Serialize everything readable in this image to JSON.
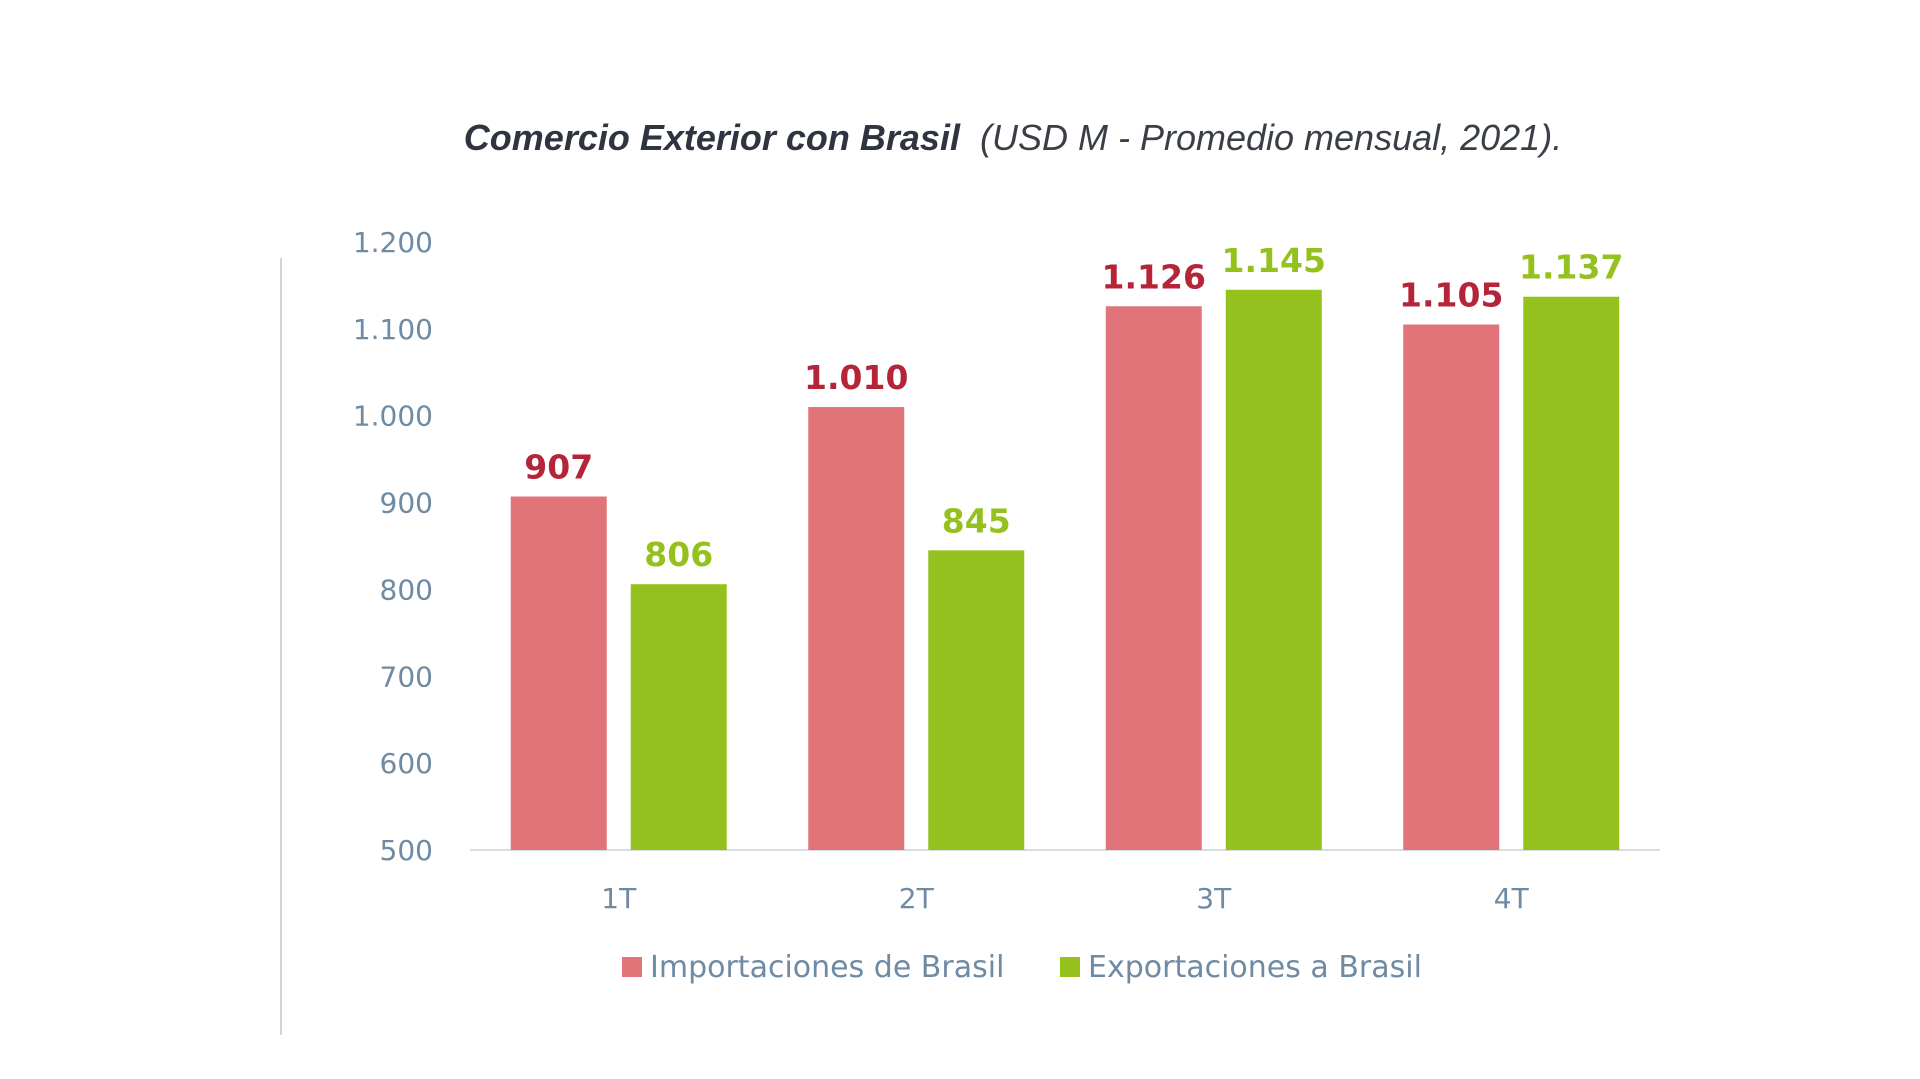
{
  "chart_data": {
    "type": "bar",
    "title_bold": "Comercio Exterior con Brasil",
    "title_rest": "(USD M  - Promedio mensual, 2021).",
    "categories": [
      "1T",
      "2T",
      "3T",
      "4T"
    ],
    "series": [
      {
        "name": "Importaciones de Brasil",
        "color": "#e07478",
        "label_color": "#b5253a",
        "values": [
          907,
          1010,
          1126,
          1105
        ],
        "labels": [
          "907",
          "1.010",
          "1.126",
          "1.105"
        ]
      },
      {
        "name": "Exportaciones a Brasil",
        "color": "#95c11f",
        "label_color": "#95c11f",
        "values": [
          806,
          845,
          1145,
          1137
        ],
        "labels": [
          "806",
          "845",
          "1.145",
          "1.137"
        ]
      }
    ],
    "ylim": [
      500,
      1200
    ],
    "yticks": [
      500,
      600,
      700,
      800,
      900,
      1000,
      1100,
      1200
    ],
    "ytick_labels": [
      "500",
      "600",
      "700",
      "800",
      "900",
      "1.000",
      "1.100",
      "1.200"
    ],
    "xlabel": "",
    "ylabel": "",
    "grid": false,
    "legend_position": "bottom-center"
  }
}
